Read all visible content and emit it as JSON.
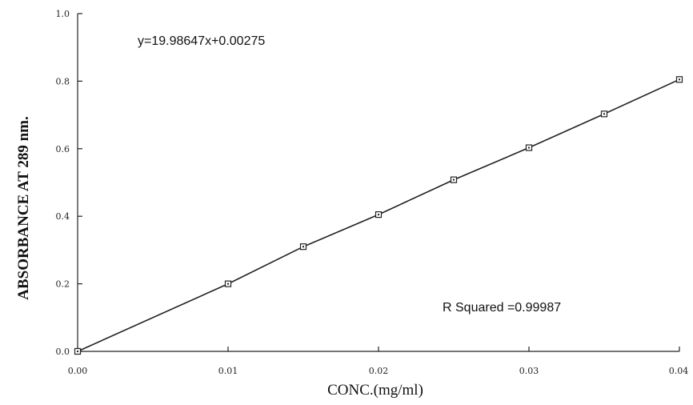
{
  "chart_data": {
    "type": "scatter",
    "title": "",
    "xlabel": "CONC.(mg/ml)",
    "ylabel": "ABSORBANCE AT 289 nm.",
    "xlim": [
      0,
      0.04
    ],
    "ylim": [
      0,
      1.0
    ],
    "x_ticks": [
      0,
      0.01,
      0.02,
      0.03,
      0.04
    ],
    "x_tick_labels": [
      "0.00",
      "0.01",
      "0.02",
      "0.03",
      "0.04"
    ],
    "y_ticks": [
      0,
      0.2,
      0.4,
      0.6,
      0.8,
      1.0
    ],
    "y_tick_labels": [
      "0.0",
      "0.2",
      "0.4",
      "0.6",
      "0.8",
      "1.0"
    ],
    "grid": false,
    "series": [
      {
        "x": [
          0,
          0.01,
          0.015,
          0.02,
          0.025,
          0.03,
          0.035,
          0.04
        ],
        "y": [
          0.0,
          0.2,
          0.31,
          0.405,
          0.508,
          0.603,
          0.703,
          0.805
        ]
      }
    ],
    "fit": {
      "slope": 19.98647,
      "intercept": 0.00275
    },
    "annotations": {
      "equation": "y=19.98647x+0.00275",
      "r_squared": "R Squared =0.99987"
    }
  }
}
